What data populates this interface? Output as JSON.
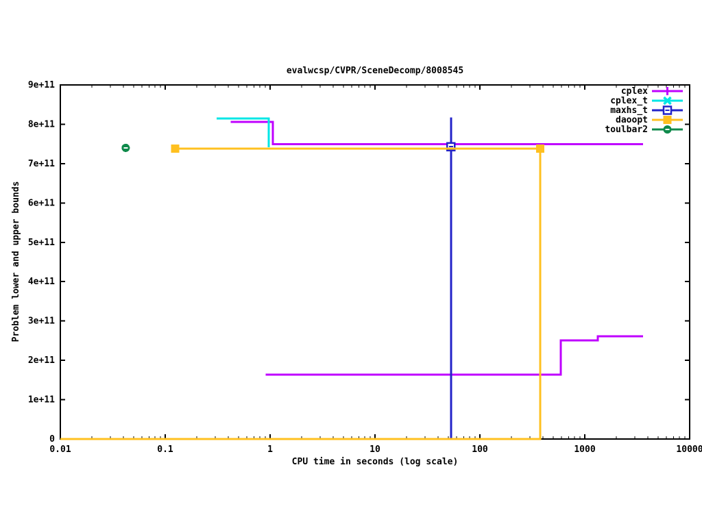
{
  "chart_data": {
    "type": "line",
    "title": "evalwcsp/CVPR/SceneDecomp/8008545",
    "xlabel": "CPU time in seconds (log scale)",
    "ylabel": "Problem lower and upper bounds",
    "x_scale": "log",
    "xlim": [
      0.01,
      10000
    ],
    "ylim": [
      0,
      900000000000.0
    ],
    "grid": false,
    "legend_position": "top-right-inside",
    "x_ticks": {
      "values": [
        0.01,
        0.1,
        1,
        10,
        100,
        1000,
        10000
      ],
      "labels": [
        "0.01",
        "0.1",
        "1",
        "10",
        "100",
        "1000",
        "10000"
      ]
    },
    "y_ticks": {
      "values": [
        0,
        100000000000.0,
        200000000000.0,
        300000000000.0,
        400000000000.0,
        500000000000.0,
        600000000000.0,
        700000000000.0,
        800000000000.0,
        900000000000.0
      ],
      "labels": [
        "0",
        "1e+11",
        "2e+11",
        "3e+11",
        "4e+11",
        "5e+11",
        "6e+11",
        "7e+11",
        "8e+11",
        "9e+11"
      ]
    },
    "series": [
      {
        "name": "cplex",
        "color": "#bf00ff",
        "marker": "plus",
        "segments": [
          [
            [
              0.42,
              806000000000.0
            ],
            [
              1.06,
              806000000000.0
            ],
            [
              1.06,
              749000000000.0
            ],
            [
              3600,
              749000000000.0
            ]
          ],
          [
            [
              0.91,
              164000000000.0
            ],
            [
              590,
              164000000000.0
            ],
            [
              590,
              251000000000.0
            ],
            [
              1330,
              251000000000.0
            ],
            [
              1330,
              261000000000.0
            ],
            [
              3600,
              261000000000.0
            ]
          ]
        ],
        "points": []
      },
      {
        "name": "cplex_t",
        "color": "#00e6e6",
        "marker": "cross",
        "segments": [
          [
            [
              0.31,
              815000000000.0
            ],
            [
              0.97,
              815000000000.0
            ],
            [
              0.97,
              742000000000.0
            ]
          ]
        ],
        "points": []
      },
      {
        "name": "maxhs_t",
        "color": "#2323c8",
        "marker": "square-open",
        "segments": [
          [
            [
              53,
              817000000000.0
            ],
            [
              53,
              0
            ]
          ]
        ],
        "points": [
          [
            53,
            743000000000.0
          ]
        ]
      },
      {
        "name": "daoopt",
        "color": "#ffc020",
        "marker": "square-filled",
        "segments": [
          [
            [
              0.124,
              738000000000.0
            ],
            [
              376,
              738000000000.0
            ]
          ],
          [
            [
              0.01,
              0
            ],
            [
              376,
              0
            ],
            [
              376,
              738000000000.0
            ]
          ]
        ],
        "points": [
          [
            0.124,
            738000000000.0
          ],
          [
            376,
            738000000000.0
          ]
        ]
      },
      {
        "name": "toulbar2",
        "color": "#0f8a4b",
        "marker": "circle-filled",
        "segments": [],
        "points": [
          [
            0.042,
            740000000000.0
          ]
        ]
      }
    ]
  }
}
